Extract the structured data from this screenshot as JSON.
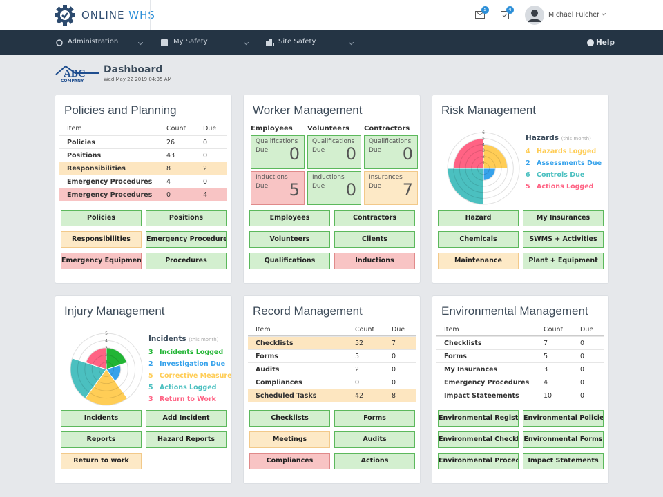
{
  "header": {
    "brand_main": "ONLINE",
    "brand_accent": "WHS",
    "mail_count": 5,
    "task_count": 4,
    "user": "Michael Fulcher"
  },
  "nav": {
    "items": [
      "Administration",
      "My Safety",
      "Site Safety"
    ],
    "help": "Help"
  },
  "page": {
    "logo": "ABC",
    "logo_sub": "COMPANY",
    "title": "Dashboard",
    "date": "Wed May 22 2019 04:35 AM"
  },
  "panels": [
    {
      "kind": "table",
      "title": "Policies and Planning",
      "columns": [
        "Item",
        "Count",
        "Due"
      ],
      "rows": [
        {
          "cells": [
            "Policies",
            26,
            0
          ]
        },
        {
          "cells": [
            "Positions",
            43,
            0
          ]
        },
        {
          "cells": [
            "Responsibilities",
            8,
            2
          ],
          "status": "warning"
        },
        {
          "cells": [
            "Emergency Procedures",
            4,
            0
          ]
        },
        {
          "cells": [
            "Emergency Procedures",
            0,
            4
          ],
          "status": "danger"
        }
      ],
      "buttons": [
        {
          "label": "Policies",
          "status": "success"
        },
        {
          "label": "Positions",
          "status": "success"
        },
        {
          "label": "Responsibilities",
          "status": "warning"
        },
        {
          "label": "Emergency Procedures",
          "status": "success"
        },
        {
          "label": "Emergency Equipment",
          "status": "danger"
        },
        {
          "label": "Procedures",
          "status": "success"
        }
      ]
    },
    {
      "kind": "workers",
      "title": "Worker Management",
      "groups": [
        {
          "name": "Employees",
          "cards": [
            {
              "label": "Qualifications",
              "sub": "Due",
              "value": 0,
              "status": "success"
            },
            {
              "label": "Inductions",
              "sub": "Due",
              "value": 5,
              "status": "danger"
            }
          ]
        },
        {
          "name": "Volunteers",
          "cards": [
            {
              "label": "Qualifications",
              "sub": "Due",
              "value": 0,
              "status": "success"
            },
            {
              "label": "Inductions",
              "sub": "Due",
              "value": 0,
              "status": "success"
            }
          ]
        },
        {
          "name": "Contractors",
          "cards": [
            {
              "label": "Qualifications",
              "sub": "Due",
              "value": 0,
              "status": "success"
            },
            {
              "label": "Insurances",
              "sub": "Due",
              "value": 7,
              "status": "warning"
            }
          ]
        }
      ],
      "buttons": [
        {
          "label": "Employees",
          "status": "success"
        },
        {
          "label": "Contractors",
          "status": "success"
        },
        {
          "label": "Volunteers",
          "status": "success"
        },
        {
          "label": "Clients",
          "status": "success"
        },
        {
          "label": "Qualifications",
          "status": "success"
        },
        {
          "label": "Inductions",
          "status": "danger"
        }
      ]
    },
    {
      "kind": "chart",
      "type": "polarArea",
      "title": "Risk Management",
      "legend_title": "Hazards",
      "legend_note": "(this month)",
      "rlim": [
        0,
        6
      ],
      "rticks": [
        1,
        2,
        3,
        4,
        5,
        6
      ],
      "series": [
        {
          "name": "Hazards Logged",
          "value": 4,
          "color": "#ffcd56"
        },
        {
          "name": "Assessments Due",
          "value": 2,
          "color": "#36a2eb"
        },
        {
          "name": "Controls Due",
          "value": 6,
          "color": "#4bc0c0"
        },
        {
          "name": "Actions Logged",
          "value": 5,
          "color": "#ff6384"
        }
      ],
      "buttons": [
        {
          "label": "Hazard",
          "status": "success"
        },
        {
          "label": "My Insurances",
          "status": "success"
        },
        {
          "label": "Chemicals",
          "status": "success"
        },
        {
          "label": "SWMS + Activities",
          "status": "success"
        },
        {
          "label": "Maintenance",
          "status": "warning"
        },
        {
          "label": "Plant + Equipment",
          "status": "success"
        }
      ]
    },
    {
      "kind": "chart",
      "type": "polarArea",
      "title": "Injury Management",
      "legend_title": "Incidents",
      "legend_note": "(this month)",
      "rlim": [
        0,
        5
      ],
      "rticks": [
        1,
        2,
        3,
        4,
        5
      ],
      "series": [
        {
          "name": "Incidents Logged",
          "value": 3,
          "color": "#22b535"
        },
        {
          "name": "Investigation Due",
          "value": 2,
          "color": "#36a2eb"
        },
        {
          "name": "Corrective Measure",
          "value": 5,
          "color": "#ffcd56"
        },
        {
          "name": "Actions Logged",
          "value": 5,
          "color": "#4bc0c0"
        },
        {
          "name": "Return to Work",
          "value": 3,
          "color": "#ff6384"
        }
      ],
      "buttons": [
        {
          "label": "Incidents",
          "status": "success"
        },
        {
          "label": "Add Incident",
          "status": "success"
        },
        {
          "label": "Reports",
          "status": "success"
        },
        {
          "label": "Hazard Reports",
          "status": "success"
        },
        {
          "label": "Return to work",
          "status": "warning"
        }
      ]
    },
    {
      "kind": "table",
      "title": "Record Management",
      "columns": [
        "Item",
        "Count",
        "Due"
      ],
      "rows": [
        {
          "cells": [
            "Checklists",
            52,
            7
          ],
          "status": "warning"
        },
        {
          "cells": [
            "Forms",
            5,
            0
          ]
        },
        {
          "cells": [
            "Audits",
            2,
            0
          ]
        },
        {
          "cells": [
            "Compliances",
            0,
            0
          ]
        },
        {
          "cells": [
            "Scheduled Tasks",
            42,
            8
          ],
          "status": "warning"
        }
      ],
      "buttons": [
        {
          "label": "Checklists",
          "status": "success"
        },
        {
          "label": "Forms",
          "status": "success"
        },
        {
          "label": "Meetings",
          "status": "warning"
        },
        {
          "label": "Audits",
          "status": "success"
        },
        {
          "label": "Compliances",
          "status": "danger"
        },
        {
          "label": "Actions",
          "status": "success"
        }
      ]
    },
    {
      "kind": "table",
      "title": "Environmental Management",
      "columns": [
        "Item",
        "Count",
        "Due"
      ],
      "rows": [
        {
          "cells": [
            "Checklists",
            7,
            0
          ]
        },
        {
          "cells": [
            "Forms",
            5,
            0
          ]
        },
        {
          "cells": [
            "My Insurances",
            3,
            0
          ]
        },
        {
          "cells": [
            "Emergency Procedures",
            4,
            0
          ]
        },
        {
          "cells": [
            "Impact Stateements",
            10,
            0
          ]
        }
      ],
      "buttons": [
        {
          "label": "Environmental Register",
          "status": "success"
        },
        {
          "label": "Environmental Policies",
          "status": "success"
        },
        {
          "label": "Environmental Checklist",
          "status": "success"
        },
        {
          "label": "Environmental Forms",
          "status": "success"
        },
        {
          "label": "Environmental Procedur",
          "status": "success"
        },
        {
          "label": "Impact Statements",
          "status": "success"
        }
      ]
    }
  ]
}
